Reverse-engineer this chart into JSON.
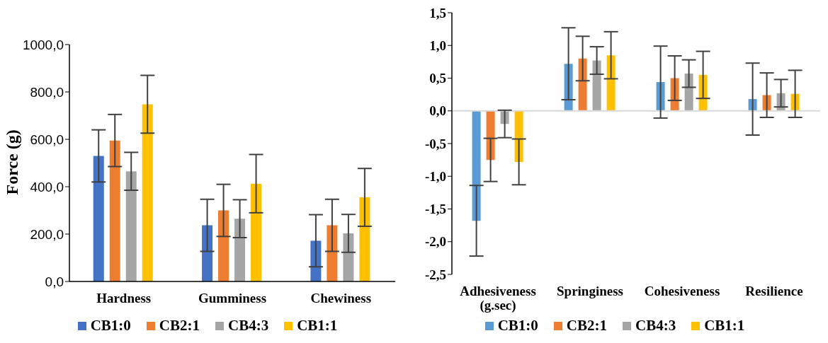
{
  "chart_data": [
    {
      "type": "bar",
      "ylabel": "Force (g)",
      "categories": [
        "Hardness",
        "Gumminess",
        "Chewiness"
      ],
      "series": [
        {
          "name": "CB1:0",
          "color": "#4472c4",
          "values": [
            530,
            237,
            172
          ],
          "errors": [
            110,
            110,
            110
          ]
        },
        {
          "name": "CB2:1",
          "color": "#ed7d31",
          "values": [
            595,
            300,
            237
          ],
          "errors": [
            110,
            110,
            110
          ]
        },
        {
          "name": "CB4:3",
          "color": "#a5a5a5",
          "values": [
            465,
            265,
            203
          ],
          "errors": [
            80,
            80,
            80
          ]
        },
        {
          "name": "CB1:1",
          "color": "#ffc000",
          "values": [
            748,
            413,
            355
          ],
          "errors": [
            122,
            123,
            122
          ]
        }
      ],
      "ylim": [
        0,
        1000
      ],
      "yticks": [
        {
          "value": 0,
          "label": "0,0"
        },
        {
          "value": 200,
          "label": "200,0"
        },
        {
          "value": 400,
          "label": "400,0"
        },
        {
          "value": 600,
          "label": "600,0"
        },
        {
          "value": 800,
          "label": "800,0"
        },
        {
          "value": 1000,
          "label": "1000,0"
        }
      ],
      "grid": false,
      "legend": "bottom"
    },
    {
      "type": "bar",
      "categories": [
        "Adhesiveness (g.sec)",
        "Springiness",
        "Cohesiveness",
        "Resilience"
      ],
      "series": [
        {
          "name": "CB1:0",
          "color": "#5b9bd5",
          "values": [
            -1.68,
            0.72,
            0.44,
            0.18
          ],
          "errors": [
            0.54,
            0.55,
            0.55,
            0.55
          ]
        },
        {
          "name": "CB2:1",
          "color": "#ed7d31",
          "values": [
            -0.75,
            0.8,
            0.5,
            0.24
          ],
          "errors": [
            0.33,
            0.34,
            0.34,
            0.34
          ]
        },
        {
          "name": "CB4:3",
          "color": "#a5a5a5",
          "values": [
            -0.2,
            0.77,
            0.57,
            0.27
          ],
          "errors": [
            0.21,
            0.21,
            0.21,
            0.21
          ]
        },
        {
          "name": "CB1:1",
          "color": "#ffc000",
          "values": [
            -0.78,
            0.85,
            0.55,
            0.26
          ],
          "errors": [
            0.35,
            0.36,
            0.36,
            0.36
          ]
        }
      ],
      "ylim": [
        -2.5,
        1.5
      ],
      "yticks": [
        {
          "value": -2.5,
          "label": "-2,5"
        },
        {
          "value": -2,
          "label": "-2,0"
        },
        {
          "value": -1.5,
          "label": "-1,5"
        },
        {
          "value": -1,
          "label": "-1,0"
        },
        {
          "value": -0.5,
          "label": "-0,5"
        },
        {
          "value": 0,
          "label": "0,0"
        },
        {
          "value": 0.5,
          "label": "0,5"
        },
        {
          "value": 1,
          "label": "1,0"
        },
        {
          "value": 1.5,
          "label": "1,5"
        }
      ],
      "grid": false,
      "legend": "bottom",
      "ref_lines": [
        {
          "axis": "y",
          "value": 0,
          "color": "#d9d9d9"
        }
      ]
    }
  ]
}
